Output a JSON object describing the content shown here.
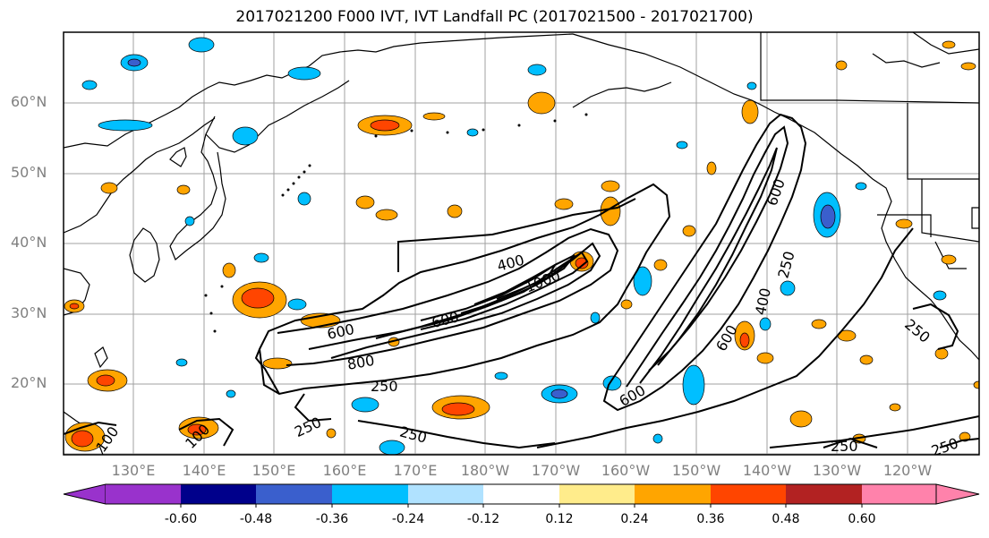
{
  "title": "2017021200 F000 IVT, IVT Landfall PC (2017021500 - 2017021700)",
  "lat_labels": [
    "60°N",
    "50°N",
    "40°N",
    "30°N",
    "20°N"
  ],
  "lon_labels": [
    "130°E",
    "140°E",
    "150°E",
    "160°E",
    "170°E",
    "180°W",
    "170°W",
    "160°W",
    "150°W",
    "140°W",
    "130°W",
    "120°W"
  ],
  "contour_labels": [
    "400",
    "1000",
    "600",
    "800",
    "600",
    "250",
    "250",
    "250",
    "600",
    "250",
    "400",
    "600",
    "600",
    "250",
    "250",
    "250",
    "100",
    "100"
  ],
  "colorbar": {
    "colors": [
      "#9932cc",
      "#00008b",
      "#3a5fcd",
      "#00bfff",
      "#b0e2ff",
      "#ffffff",
      "#ffec8b",
      "#ffa500",
      "#ff4500",
      "#b22222",
      "#ff82ab"
    ],
    "tick_labels": [
      "-0.60",
      "-0.48",
      "-0.36",
      "-0.24",
      "-0.12",
      "0.12",
      "0.24",
      "0.36",
      "0.48",
      "0.60"
    ]
  },
  "fill_colors": {
    "pos_light": "#ffec8b",
    "pos_mid": "#ffa500",
    "pos_strong": "#ff4500",
    "neg_light": "#b0e2ff",
    "neg_mid": "#00bfff",
    "neg_strong": "#3a5fcd"
  }
}
